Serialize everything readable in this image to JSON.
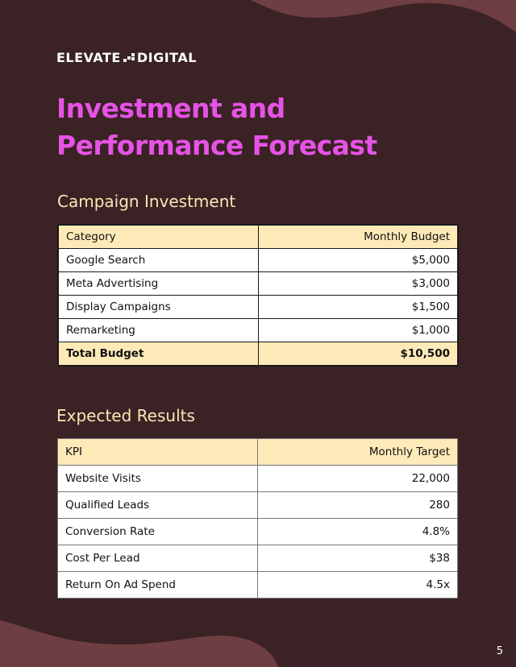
{
  "brand": {
    "name_left": "ELEVATE",
    "name_right": "DIGITAL"
  },
  "title": {
    "line1": "Investment and",
    "line2": "Performance Forecast"
  },
  "investment": {
    "heading": "Campaign Investment",
    "columns": [
      "Category",
      "Monthly Budget"
    ],
    "rows": [
      {
        "label": "Google Search",
        "value": "$5,000"
      },
      {
        "label": "Meta Advertising",
        "value": "$3,000"
      },
      {
        "label": "Display Campaigns",
        "value": "$1,500"
      },
      {
        "label": "Remarketing",
        "value": "$1,000"
      }
    ],
    "total": {
      "label": "Total Budget",
      "value": "$10,500"
    }
  },
  "results": {
    "heading": "Expected Results",
    "columns": [
      "KPI",
      "Monthly Target"
    ],
    "rows": [
      {
        "label": "Website Visits",
        "value": "22,000"
      },
      {
        "label": "Qualified Leads",
        "value": "280"
      },
      {
        "label": "Conversion Rate",
        "value": "4.8%"
      },
      {
        "label": "Cost Per Lead",
        "value": "$38"
      },
      {
        "label": "Return On Ad Spend",
        "value": "4.5x"
      }
    ]
  },
  "page_number": "5",
  "colors": {
    "background": "#3b2224",
    "blob": "#6d3f42",
    "title": "#e653e6",
    "section_heading": "#fbe6b8",
    "table_header": "#fdeab8"
  }
}
